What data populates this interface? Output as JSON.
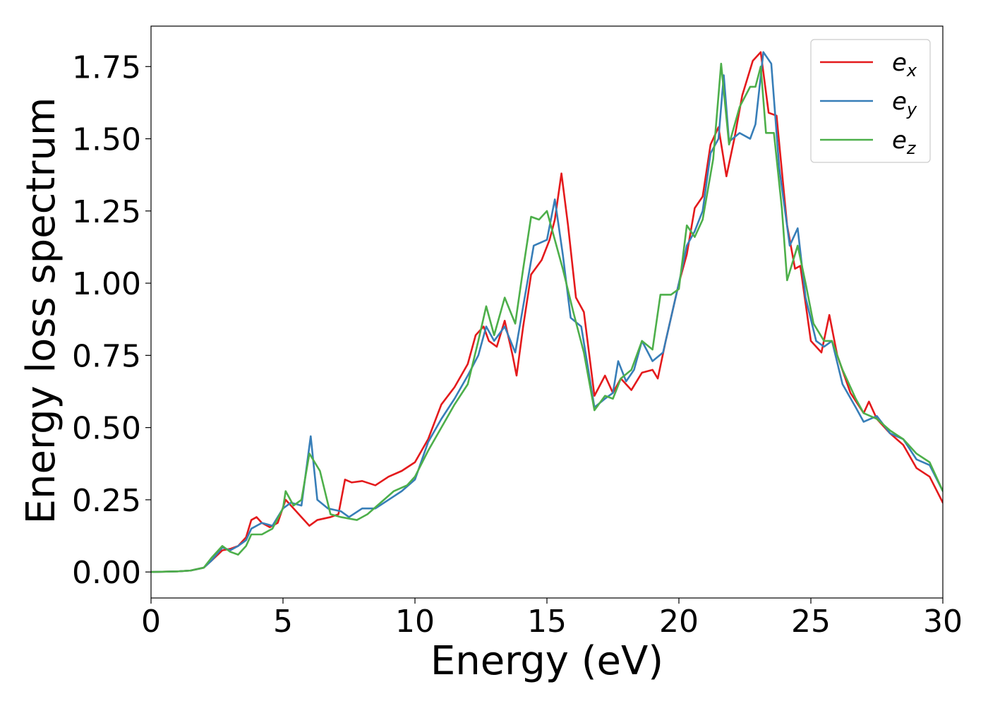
{
  "chart_data": {
    "type": "line",
    "xlabel": "Energy (eV)",
    "ylabel": "Energy loss spectrum",
    "xlim": [
      0,
      30
    ],
    "ylim": [
      -0.09,
      1.89
    ],
    "xticks": [
      0,
      5,
      10,
      15,
      20,
      25,
      30
    ],
    "xtick_labels": [
      "0",
      "5",
      "10",
      "15",
      "20",
      "25",
      "30"
    ],
    "yticks": [
      0.0,
      0.25,
      0.5,
      0.75,
      1.0,
      1.25,
      1.5,
      1.75
    ],
    "ytick_labels": [
      "0.00",
      "0.25",
      "0.50",
      "0.75",
      "1.00",
      "1.25",
      "1.50",
      "1.75"
    ],
    "grid": false,
    "legend_position": "top-right",
    "series": [
      {
        "name": "e_x",
        "legend_base": "e",
        "legend_sub": "x",
        "color": "#e41a1c",
        "points": [
          [
            0,
            0
          ],
          [
            1,
            0.002
          ],
          [
            1.5,
            0.005
          ],
          [
            2,
            0.015
          ],
          [
            2.3,
            0.04
          ],
          [
            2.7,
            0.075
          ],
          [
            3,
            0.08
          ],
          [
            3.3,
            0.09
          ],
          [
            3.6,
            0.12
          ],
          [
            3.8,
            0.18
          ],
          [
            4,
            0.19
          ],
          [
            4.2,
            0.17
          ],
          [
            4.5,
            0.155
          ],
          [
            4.8,
            0.17
          ],
          [
            5.1,
            0.25
          ],
          [
            5.4,
            0.22
          ],
          [
            5.7,
            0.19
          ],
          [
            6,
            0.16
          ],
          [
            6.3,
            0.18
          ],
          [
            6.8,
            0.19
          ],
          [
            7.1,
            0.2
          ],
          [
            7.35,
            0.32
          ],
          [
            7.6,
            0.31
          ],
          [
            8,
            0.315
          ],
          [
            8.5,
            0.3
          ],
          [
            9,
            0.33
          ],
          [
            9.5,
            0.35
          ],
          [
            10,
            0.38
          ],
          [
            10.5,
            0.46
          ],
          [
            11,
            0.58
          ],
          [
            11.5,
            0.64
          ],
          [
            12,
            0.72
          ],
          [
            12.3,
            0.82
          ],
          [
            12.6,
            0.85
          ],
          [
            12.8,
            0.8
          ],
          [
            13.1,
            0.78
          ],
          [
            13.4,
            0.87
          ],
          [
            13.7,
            0.75
          ],
          [
            13.85,
            0.68
          ],
          [
            14.1,
            0.85
          ],
          [
            14.4,
            1.03
          ],
          [
            14.8,
            1.08
          ],
          [
            15.1,
            1.15
          ],
          [
            15.3,
            1.22
          ],
          [
            15.55,
            1.38
          ],
          [
            15.8,
            1.2
          ],
          [
            16.1,
            0.95
          ],
          [
            16.4,
            0.9
          ],
          [
            16.8,
            0.61
          ],
          [
            17.2,
            0.68
          ],
          [
            17.5,
            0.62
          ],
          [
            17.8,
            0.67
          ],
          [
            18.2,
            0.63
          ],
          [
            18.6,
            0.69
          ],
          [
            19,
            0.7
          ],
          [
            19.2,
            0.67
          ],
          [
            19.5,
            0.8
          ],
          [
            20,
            1.0
          ],
          [
            20.3,
            1.1
          ],
          [
            20.6,
            1.26
          ],
          [
            20.9,
            1.3
          ],
          [
            21.2,
            1.48
          ],
          [
            21.5,
            1.54
          ],
          [
            21.8,
            1.37
          ],
          [
            22.1,
            1.5
          ],
          [
            22.4,
            1.65
          ],
          [
            22.8,
            1.77
          ],
          [
            23.1,
            1.8
          ],
          [
            23.4,
            1.59
          ],
          [
            23.7,
            1.58
          ],
          [
            24.1,
            1.2
          ],
          [
            24.4,
            1.05
          ],
          [
            24.6,
            1.06
          ],
          [
            25,
            0.8
          ],
          [
            25.4,
            0.76
          ],
          [
            25.7,
            0.89
          ],
          [
            26,
            0.75
          ],
          [
            26.5,
            0.62
          ],
          [
            27,
            0.55
          ],
          [
            27.2,
            0.59
          ],
          [
            27.5,
            0.53
          ],
          [
            28,
            0.48
          ],
          [
            28.5,
            0.44
          ],
          [
            29,
            0.36
          ],
          [
            29.5,
            0.33
          ],
          [
            30,
            0.24
          ]
        ]
      },
      {
        "name": "e_y",
        "legend_base": "e",
        "legend_sub": "y",
        "color": "#377eb8",
        "points": [
          [
            0,
            0
          ],
          [
            1,
            0.002
          ],
          [
            1.5,
            0.005
          ],
          [
            2,
            0.015
          ],
          [
            2.3,
            0.04
          ],
          [
            2.7,
            0.085
          ],
          [
            3,
            0.075
          ],
          [
            3.3,
            0.09
          ],
          [
            3.6,
            0.11
          ],
          [
            3.8,
            0.15
          ],
          [
            4.2,
            0.17
          ],
          [
            4.6,
            0.16
          ],
          [
            5,
            0.22
          ],
          [
            5.3,
            0.24
          ],
          [
            5.7,
            0.23
          ],
          [
            6.05,
            0.47
          ],
          [
            6.3,
            0.25
          ],
          [
            6.7,
            0.22
          ],
          [
            7.2,
            0.21
          ],
          [
            7.5,
            0.19
          ],
          [
            8,
            0.22
          ],
          [
            8.5,
            0.22
          ],
          [
            9,
            0.25
          ],
          [
            9.5,
            0.28
          ],
          [
            10,
            0.32
          ],
          [
            10.5,
            0.45
          ],
          [
            11,
            0.53
          ],
          [
            11.5,
            0.6
          ],
          [
            12,
            0.68
          ],
          [
            12.4,
            0.75
          ],
          [
            12.7,
            0.85
          ],
          [
            13,
            0.8
          ],
          [
            13.4,
            0.85
          ],
          [
            13.8,
            0.76
          ],
          [
            14.1,
            0.92
          ],
          [
            14.5,
            1.13
          ],
          [
            15,
            1.15
          ],
          [
            15.3,
            1.29
          ],
          [
            15.6,
            1.1
          ],
          [
            15.9,
            0.88
          ],
          [
            16.3,
            0.85
          ],
          [
            16.8,
            0.57
          ],
          [
            17.2,
            0.6
          ],
          [
            17.5,
            0.62
          ],
          [
            17.7,
            0.73
          ],
          [
            18,
            0.66
          ],
          [
            18.3,
            0.7
          ],
          [
            18.6,
            0.8
          ],
          [
            19,
            0.73
          ],
          [
            19.4,
            0.76
          ],
          [
            20,
            1.0
          ],
          [
            20.3,
            1.13
          ],
          [
            20.6,
            1.18
          ],
          [
            20.9,
            1.25
          ],
          [
            21.2,
            1.45
          ],
          [
            21.5,
            1.5
          ],
          [
            21.7,
            1.72
          ],
          [
            21.9,
            1.49
          ],
          [
            22.3,
            1.52
          ],
          [
            22.7,
            1.5
          ],
          [
            22.9,
            1.55
          ],
          [
            23.2,
            1.8
          ],
          [
            23.5,
            1.76
          ],
          [
            23.8,
            1.4
          ],
          [
            24.2,
            1.13
          ],
          [
            24.5,
            1.19
          ],
          [
            24.8,
            0.95
          ],
          [
            25.2,
            0.8
          ],
          [
            25.5,
            0.78
          ],
          [
            25.8,
            0.8
          ],
          [
            26.2,
            0.65
          ],
          [
            26.7,
            0.57
          ],
          [
            27,
            0.52
          ],
          [
            27.5,
            0.54
          ],
          [
            28,
            0.48
          ],
          [
            28.5,
            0.46
          ],
          [
            29,
            0.39
          ],
          [
            29.5,
            0.37
          ],
          [
            30,
            0.28
          ]
        ]
      },
      {
        "name": "e_z",
        "legend_base": "e",
        "legend_sub": "z",
        "color": "#4daf4a",
        "points": [
          [
            0,
            0
          ],
          [
            1,
            0.002
          ],
          [
            1.5,
            0.005
          ],
          [
            2,
            0.015
          ],
          [
            2.3,
            0.05
          ],
          [
            2.7,
            0.09
          ],
          [
            3,
            0.07
          ],
          [
            3.3,
            0.06
          ],
          [
            3.6,
            0.09
          ],
          [
            3.8,
            0.13
          ],
          [
            4.2,
            0.13
          ],
          [
            4.6,
            0.15
          ],
          [
            5,
            0.22
          ],
          [
            5.1,
            0.28
          ],
          [
            5.4,
            0.23
          ],
          [
            5.7,
            0.25
          ],
          [
            6,
            0.41
          ],
          [
            6.4,
            0.35
          ],
          [
            6.8,
            0.2
          ],
          [
            7.2,
            0.19
          ],
          [
            7.8,
            0.18
          ],
          [
            8.2,
            0.2
          ],
          [
            8.7,
            0.24
          ],
          [
            9.2,
            0.28
          ],
          [
            9.7,
            0.3
          ],
          [
            10,
            0.33
          ],
          [
            10.5,
            0.42
          ],
          [
            11,
            0.5
          ],
          [
            11.5,
            0.58
          ],
          [
            12,
            0.65
          ],
          [
            12.4,
            0.8
          ],
          [
            12.7,
            0.92
          ],
          [
            13,
            0.82
          ],
          [
            13.4,
            0.95
          ],
          [
            13.8,
            0.86
          ],
          [
            14.1,
            1.05
          ],
          [
            14.4,
            1.23
          ],
          [
            14.7,
            1.22
          ],
          [
            15,
            1.25
          ],
          [
            15.3,
            1.15
          ],
          [
            15.6,
            1.05
          ],
          [
            16,
            0.9
          ],
          [
            16.4,
            0.76
          ],
          [
            16.8,
            0.56
          ],
          [
            17.2,
            0.61
          ],
          [
            17.5,
            0.6
          ],
          [
            17.8,
            0.67
          ],
          [
            18.2,
            0.7
          ],
          [
            18.6,
            0.8
          ],
          [
            19,
            0.77
          ],
          [
            19.3,
            0.96
          ],
          [
            19.7,
            0.96
          ],
          [
            20,
            0.98
          ],
          [
            20.3,
            1.2
          ],
          [
            20.6,
            1.16
          ],
          [
            20.9,
            1.22
          ],
          [
            21.3,
            1.43
          ],
          [
            21.6,
            1.76
          ],
          [
            21.9,
            1.48
          ],
          [
            22.3,
            1.61
          ],
          [
            22.7,
            1.68
          ],
          [
            22.9,
            1.68
          ],
          [
            23.1,
            1.75
          ],
          [
            23.3,
            1.52
          ],
          [
            23.6,
            1.52
          ],
          [
            23.9,
            1.26
          ],
          [
            24.1,
            1.01
          ],
          [
            24.5,
            1.13
          ],
          [
            24.8,
            1.0
          ],
          [
            25.1,
            0.86
          ],
          [
            25.5,
            0.8
          ],
          [
            25.8,
            0.8
          ],
          [
            26.2,
            0.7
          ],
          [
            26.7,
            0.6
          ],
          [
            27,
            0.55
          ],
          [
            27.5,
            0.53
          ],
          [
            28,
            0.49
          ],
          [
            28.5,
            0.46
          ],
          [
            29,
            0.41
          ],
          [
            29.5,
            0.38
          ],
          [
            30,
            0.28
          ]
        ]
      }
    ]
  }
}
